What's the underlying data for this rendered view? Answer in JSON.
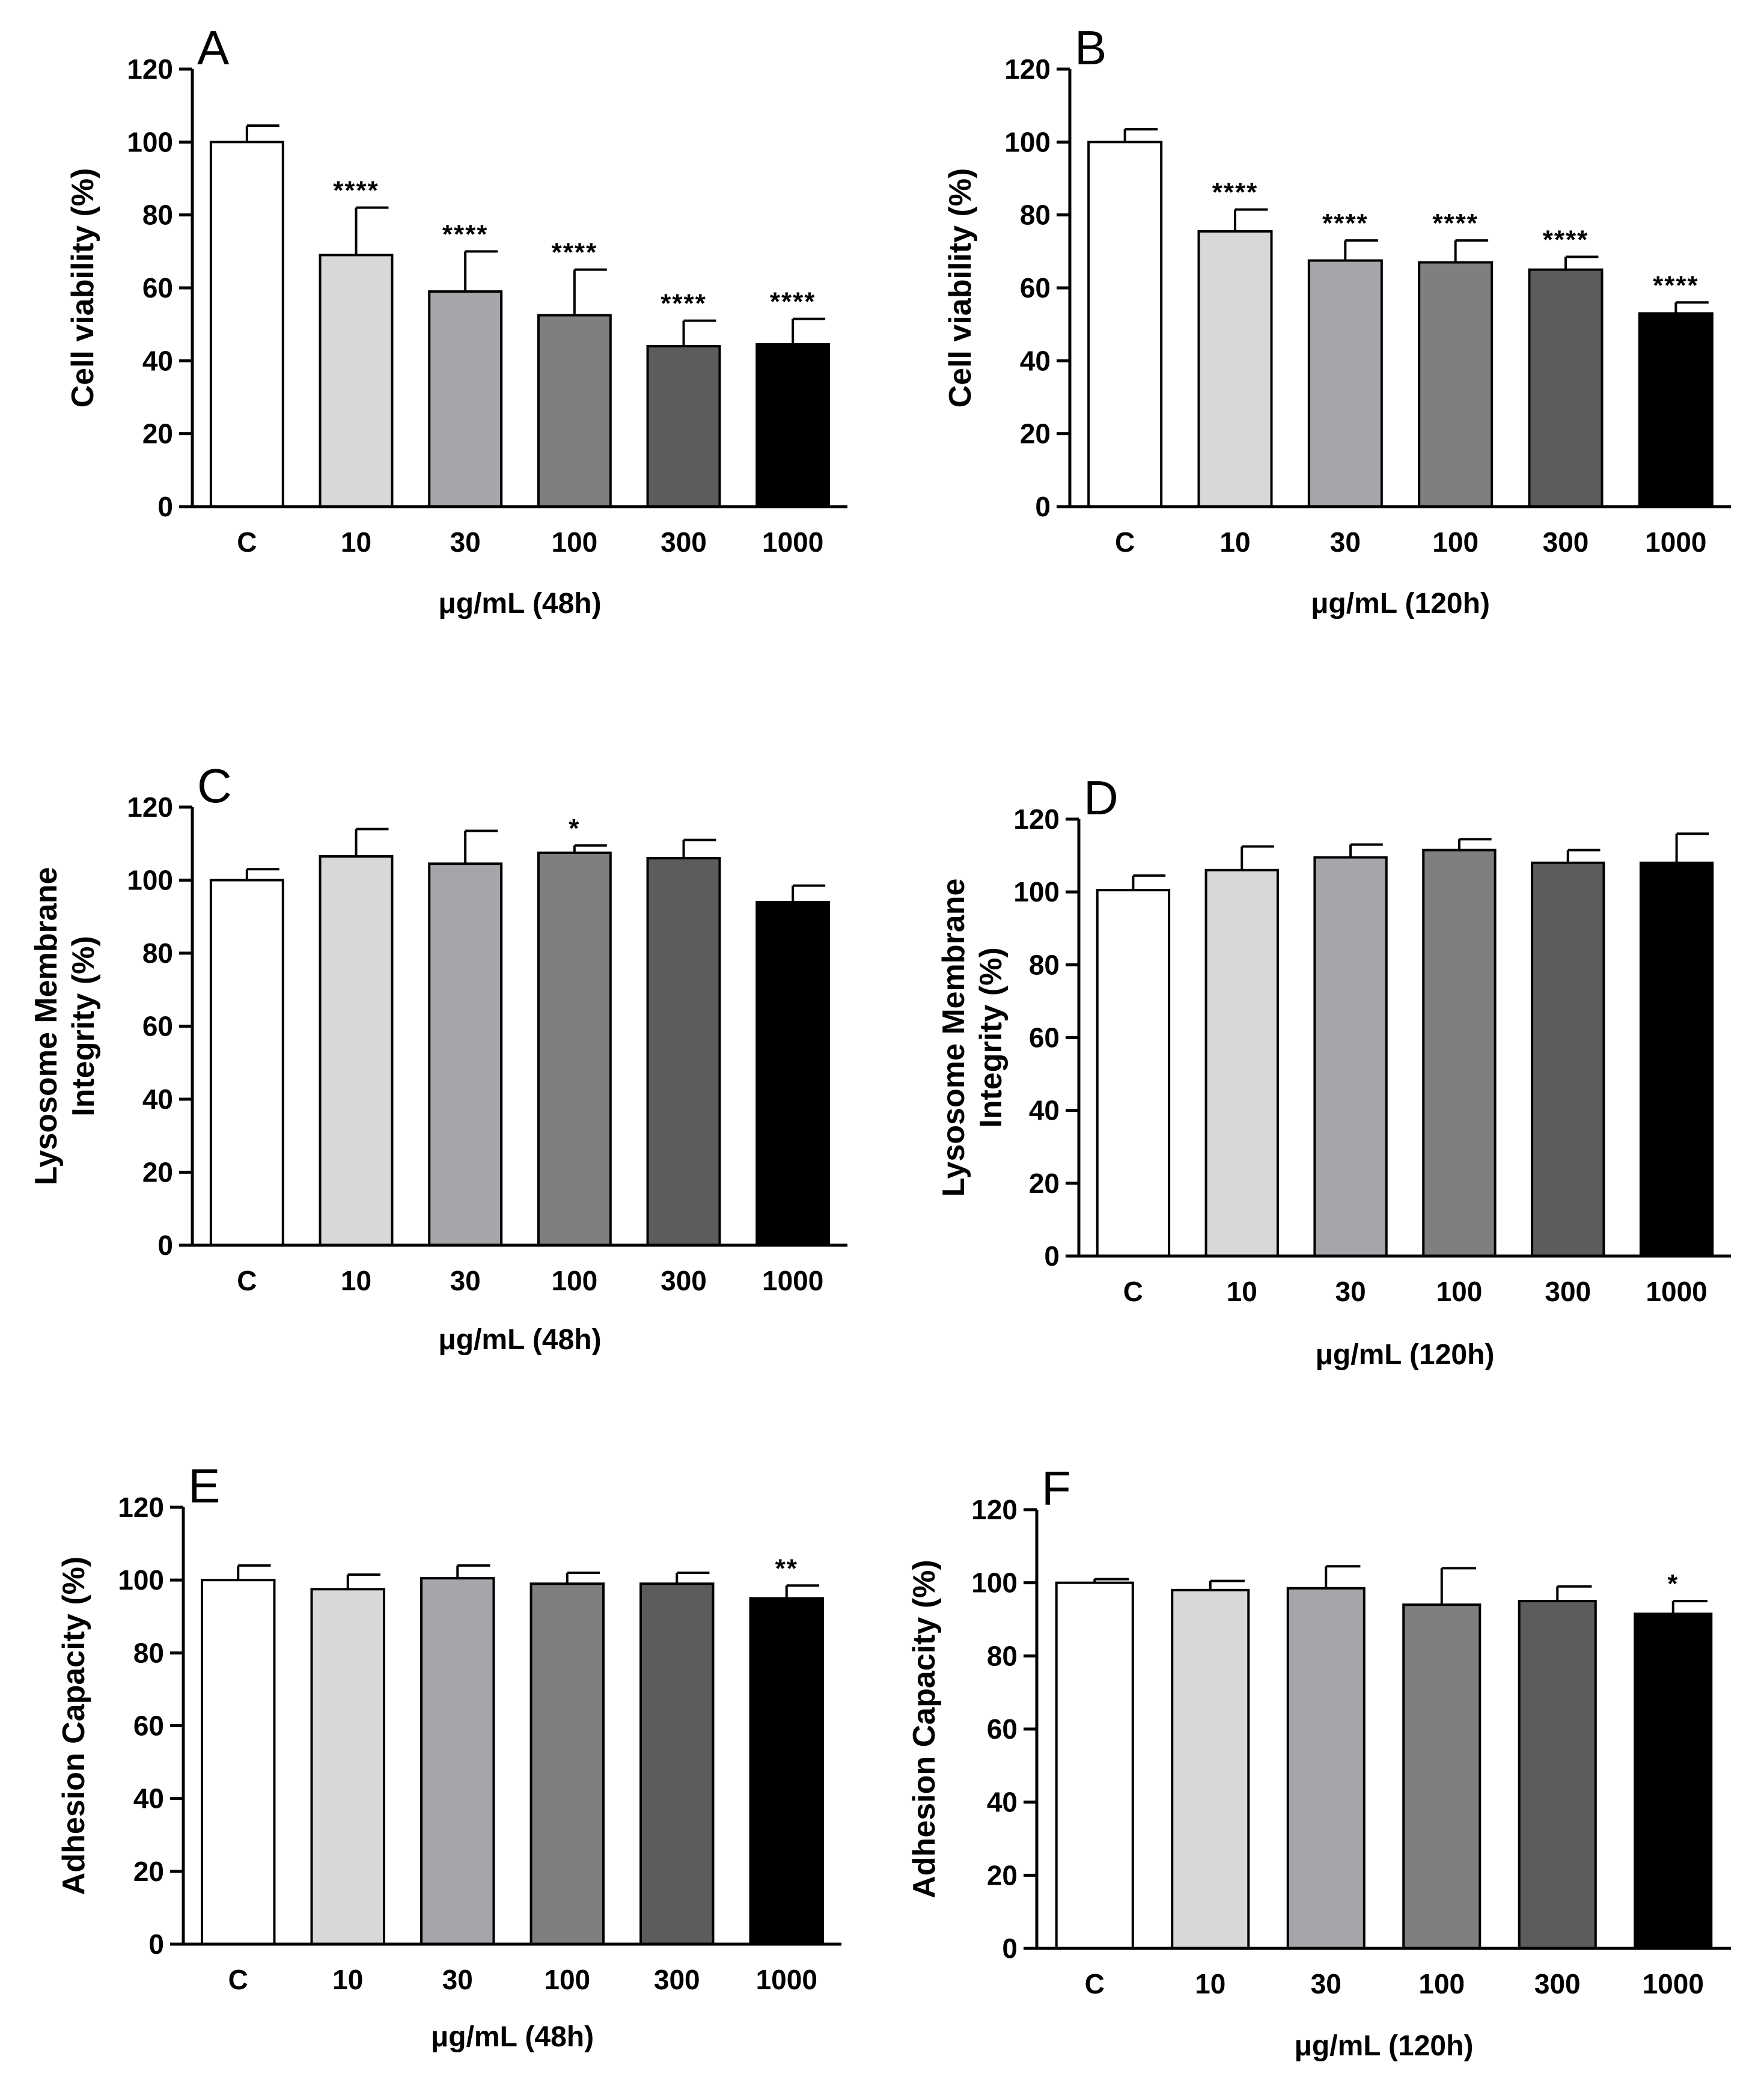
{
  "bar_colors": [
    "#ffffff",
    "#d8d8d8",
    "#a6a5aa",
    "#7f7f7f",
    "#5c5c5c",
    "#000000"
  ],
  "chart_data": [
    {
      "panel": "A",
      "type": "bar",
      "categories": [
        "C",
        "10",
        "30",
        "100",
        "300",
        "1000"
      ],
      "values": [
        100,
        69,
        59,
        52.5,
        44,
        44.5
      ],
      "errors": [
        4.5,
        13,
        11,
        12.5,
        7,
        7
      ],
      "significance": [
        "",
        "****",
        "****",
        "****",
        "****",
        "****"
      ],
      "ylim": [
        0,
        120
      ],
      "yticks": [
        0,
        20,
        40,
        60,
        80,
        100,
        120
      ],
      "ylabel": [
        "Cell viability (%)"
      ],
      "xlabel": "μg/mL (48h)"
    },
    {
      "panel": "B",
      "type": "bar",
      "categories": [
        "C",
        "10",
        "30",
        "100",
        "300",
        "1000"
      ],
      "values": [
        100,
        75.5,
        67.5,
        67,
        65,
        53
      ],
      "errors": [
        3.5,
        6,
        5.5,
        6,
        3.5,
        3
      ],
      "significance": [
        "",
        "****",
        "****",
        "****",
        "****",
        "****"
      ],
      "ylim": [
        0,
        120
      ],
      "yticks": [
        0,
        20,
        40,
        60,
        80,
        100,
        120
      ],
      "ylabel": [
        "Cell viability (%)"
      ],
      "xlabel": "μg/mL (120h)"
    },
    {
      "panel": "C",
      "type": "bar",
      "categories": [
        "C",
        "10",
        "30",
        "100",
        "300",
        "1000"
      ],
      "values": [
        100,
        106.5,
        104.5,
        107.5,
        106,
        94
      ],
      "errors": [
        3,
        7.5,
        9,
        2,
        5,
        4.5
      ],
      "significance": [
        "",
        "",
        "",
        "*",
        "",
        ""
      ],
      "ylim": [
        0,
        120
      ],
      "yticks": [
        0,
        20,
        40,
        60,
        80,
        100,
        120
      ],
      "ylabel": [
        "Lysosome Membrane",
        "Integrity (%)"
      ],
      "xlabel": "μg/mL (48h)"
    },
    {
      "panel": "D",
      "type": "bar",
      "categories": [
        "C",
        "10",
        "30",
        "100",
        "300",
        "1000"
      ],
      "values": [
        100.5,
        106,
        109.5,
        111.5,
        108,
        108
      ],
      "errors": [
        4,
        6.5,
        3.5,
        3,
        3.5,
        8
      ],
      "significance": [
        "",
        "",
        "",
        "",
        "",
        ""
      ],
      "ylim": [
        0,
        120
      ],
      "yticks": [
        0,
        20,
        40,
        60,
        80,
        100,
        120
      ],
      "ylabel": [
        "Lysosome Membrane",
        "Integrity (%)"
      ],
      "xlabel": "μg/mL (120h)"
    },
    {
      "panel": "E",
      "type": "bar",
      "categories": [
        "C",
        "10",
        "30",
        "100",
        "300",
        "1000"
      ],
      "values": [
        100,
        97.5,
        100.5,
        99,
        99,
        95
      ],
      "errors": [
        4,
        4,
        3.5,
        3,
        3,
        3.5
      ],
      "significance": [
        "",
        "",
        "",
        "",
        "",
        "**"
      ],
      "ylim": [
        0,
        120
      ],
      "yticks": [
        0,
        20,
        40,
        60,
        80,
        100,
        120
      ],
      "ylabel": [
        "Adhesion Capacity (%)"
      ],
      "xlabel": "μg/mL (48h)"
    },
    {
      "panel": "F",
      "type": "bar",
      "categories": [
        "C",
        "10",
        "30",
        "100",
        "300",
        "1000"
      ],
      "values": [
        100,
        98,
        98.5,
        94,
        95,
        91.5
      ],
      "errors": [
        1,
        2.5,
        6,
        10,
        4,
        3.5
      ],
      "significance": [
        "",
        "",
        "",
        "",
        "",
        "*"
      ],
      "ylim": [
        0,
        120
      ],
      "yticks": [
        0,
        20,
        40,
        60,
        80,
        100,
        120
      ],
      "ylabel": [
        "Adhesion Capacity (%)"
      ],
      "xlabel": "μg/mL (120h)"
    }
  ]
}
